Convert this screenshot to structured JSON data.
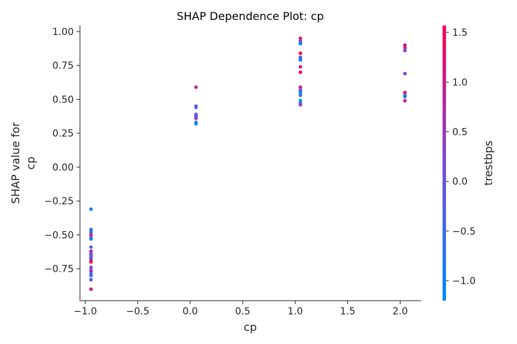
{
  "chart_data": {
    "type": "scatter",
    "title": "SHAP Dependence Plot: cp",
    "xlabel": "cp",
    "ylabel_lines": [
      "SHAP value for",
      "cp"
    ],
    "colorbar_label": "trestbps",
    "xlim": [
      -1.05,
      2.2
    ],
    "ylim": [
      -0.985,
      1.045
    ],
    "x_ticks": [
      -1.0,
      -0.5,
      0.0,
      0.5,
      1.0,
      1.5,
      2.0
    ],
    "x_tick_labels": [
      "−1.0",
      "−0.5",
      "0.0",
      "0.5",
      "1.0",
      "1.5",
      "2.0"
    ],
    "y_ticks": [
      -0.75,
      -0.5,
      -0.25,
      0.0,
      0.25,
      0.5,
      0.75,
      1.0
    ],
    "y_tick_labels": [
      "−0.75",
      "−0.50",
      "−0.25",
      "0.00",
      "0.25",
      "0.50",
      "0.75",
      "1.00"
    ],
    "colorbar_range": [
      -1.2,
      1.57
    ],
    "colorbar_ticks": [
      -1.0,
      -0.5,
      0.0,
      0.5,
      1.0,
      1.5
    ],
    "colorbar_tick_labels": [
      "−1.0",
      "−0.5",
      "0.0",
      "0.5",
      "1.0",
      "1.5"
    ],
    "colormap": [
      "#008bfb",
      "#7a4ad9",
      "#ff0052"
    ],
    "points": [
      {
        "x": -0.945,
        "y": -0.31,
        "c": -0.9
      },
      {
        "x": -0.945,
        "y": -0.46,
        "c": -0.8
      },
      {
        "x": -0.945,
        "y": -0.47,
        "c": -0.6
      },
      {
        "x": -0.945,
        "y": -0.48,
        "c": -0.85
      },
      {
        "x": -0.945,
        "y": -0.5,
        "c": 1.3
      },
      {
        "x": -0.945,
        "y": -0.52,
        "c": -0.5
      },
      {
        "x": -0.945,
        "y": -0.53,
        "c": -0.9
      },
      {
        "x": -0.945,
        "y": -0.59,
        "c": -0.2
      },
      {
        "x": -0.945,
        "y": -0.62,
        "c": 0.9
      },
      {
        "x": -0.945,
        "y": -0.64,
        "c": 0.3
      },
      {
        "x": -0.945,
        "y": -0.65,
        "c": -0.4
      },
      {
        "x": -0.945,
        "y": -0.66,
        "c": 0.6
      },
      {
        "x": -0.945,
        "y": -0.67,
        "c": 0.1
      },
      {
        "x": -0.945,
        "y": -0.68,
        "c": -0.6
      },
      {
        "x": -0.945,
        "y": -0.69,
        "c": 1.0
      },
      {
        "x": -0.945,
        "y": -0.7,
        "c": 1.4
      },
      {
        "x": -0.945,
        "y": -0.74,
        "c": 0.5
      },
      {
        "x": -0.945,
        "y": -0.76,
        "c": -0.3
      },
      {
        "x": -0.945,
        "y": -0.77,
        "c": 0.8
      },
      {
        "x": -0.945,
        "y": -0.79,
        "c": -0.9
      },
      {
        "x": -0.945,
        "y": -0.8,
        "c": -0.7
      },
      {
        "x": -0.945,
        "y": -0.83,
        "c": 0.0
      },
      {
        "x": -0.945,
        "y": -0.9,
        "c": 1.1
      },
      {
        "x": 0.055,
        "y": 0.59,
        "c": 0.9
      },
      {
        "x": 0.055,
        "y": 0.45,
        "c": -0.1
      },
      {
        "x": 0.055,
        "y": 0.44,
        "c": -0.3
      },
      {
        "x": 0.055,
        "y": 0.39,
        "c": 0.1
      },
      {
        "x": 0.055,
        "y": 0.38,
        "c": -0.2
      },
      {
        "x": 0.055,
        "y": 0.37,
        "c": -0.6
      },
      {
        "x": 0.055,
        "y": 0.36,
        "c": 0.4
      },
      {
        "x": 0.055,
        "y": 0.33,
        "c": -0.8
      },
      {
        "x": 0.055,
        "y": 0.32,
        "c": -1.0
      },
      {
        "x": 1.05,
        "y": 0.95,
        "c": 1.2
      },
      {
        "x": 1.05,
        "y": 0.93,
        "c": 0.6
      },
      {
        "x": 1.05,
        "y": 0.92,
        "c": -0.3
      },
      {
        "x": 1.05,
        "y": 0.91,
        "c": -1.0
      },
      {
        "x": 1.05,
        "y": 0.84,
        "c": 1.5
      },
      {
        "x": 1.05,
        "y": 0.81,
        "c": -0.1
      },
      {
        "x": 1.05,
        "y": 0.8,
        "c": -0.7
      },
      {
        "x": 1.05,
        "y": 0.79,
        "c": -0.8
      },
      {
        "x": 1.05,
        "y": 0.74,
        "c": 1.0
      },
      {
        "x": 1.05,
        "y": 0.7,
        "c": 1.4
      },
      {
        "x": 1.05,
        "y": 0.59,
        "c": 1.2
      },
      {
        "x": 1.05,
        "y": 0.57,
        "c": 0.3
      },
      {
        "x": 1.05,
        "y": 0.56,
        "c": -0.5
      },
      {
        "x": 1.05,
        "y": 0.55,
        "c": -0.9
      },
      {
        "x": 1.05,
        "y": 0.53,
        "c": -0.8
      },
      {
        "x": 1.05,
        "y": 0.49,
        "c": -1.1
      },
      {
        "x": 1.05,
        "y": 0.47,
        "c": -0.6
      },
      {
        "x": 1.05,
        "y": 0.46,
        "c": 0.5
      },
      {
        "x": 2.045,
        "y": 0.9,
        "c": 1.3
      },
      {
        "x": 2.045,
        "y": 0.88,
        "c": 0.9
      },
      {
        "x": 2.045,
        "y": 0.86,
        "c": 0.2
      },
      {
        "x": 2.045,
        "y": 0.69,
        "c": 0.3
      },
      {
        "x": 2.045,
        "y": 0.55,
        "c": 1.4
      },
      {
        "x": 2.045,
        "y": 0.53,
        "c": -0.2
      },
      {
        "x": 2.045,
        "y": 0.52,
        "c": -0.9
      },
      {
        "x": 2.045,
        "y": 0.49,
        "c": 1.0
      }
    ]
  }
}
